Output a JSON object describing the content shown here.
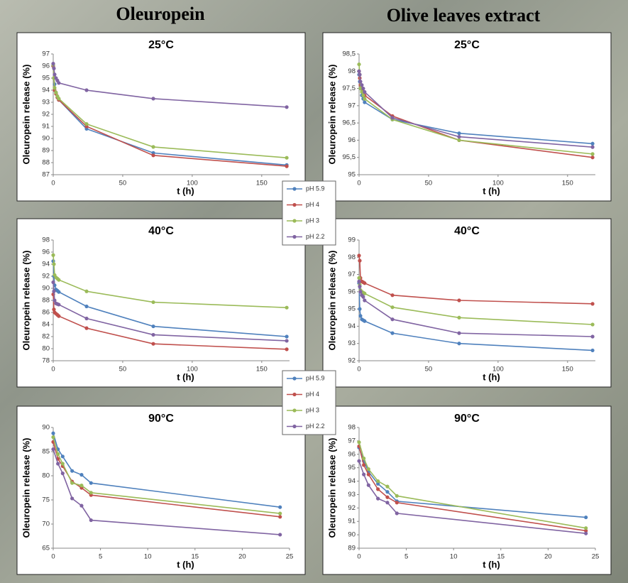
{
  "headings": [
    "Oleuropein",
    "Olive leaves extract"
  ],
  "chart_data": [
    {
      "type": "line",
      "title": "25°C",
      "x_label": "t (h)",
      "y_label": "Oleuropein release (%)",
      "x": [
        0,
        0.5,
        1,
        2,
        3,
        4,
        24,
        72,
        168
      ],
      "xlim": [
        0,
        170
      ],
      "xticks": [
        0,
        50,
        100,
        150
      ],
      "ylim": [
        87,
        97
      ],
      "yticks": [
        87,
        88,
        89,
        90,
        91,
        92,
        93,
        94,
        95,
        96,
        97
      ],
      "series": [
        {
          "name": "pH 5.9",
          "color": "#4f81bd",
          "values": [
            96,
            95,
            94.5,
            93.8,
            93.4,
            93.2,
            90.8,
            88.8,
            87.8
          ]
        },
        {
          "name": "pH 4",
          "color": "#c0504d",
          "values": [
            96,
            95,
            94,
            93.7,
            93.4,
            93.2,
            91,
            88.6,
            87.7
          ]
        },
        {
          "name": "pH 3",
          "color": "#9bbb59",
          "values": [
            96.1,
            95,
            94.2,
            93.8,
            93.5,
            93.3,
            91.2,
            89.3,
            88.4
          ]
        },
        {
          "name": "pH 2.2",
          "color": "#8064a2",
          "values": [
            96.2,
            95.8,
            95.3,
            95,
            94.8,
            94.6,
            94,
            93.3,
            92.6
          ]
        }
      ]
    },
    {
      "type": "line",
      "title": "25°C",
      "x_label": "t (h)",
      "y_label": "Oleuropein release (%)",
      "x": [
        0,
        0.5,
        1,
        2,
        3,
        4,
        24,
        72,
        168
      ],
      "xlim": [
        0,
        170
      ],
      "xticks": [
        0,
        50,
        100,
        150
      ],
      "ylim": [
        95,
        98.5
      ],
      "yticks": [
        95,
        {
          "value": 95.5,
          "label": "95,5"
        },
        96,
        {
          "value": 96.5,
          "label": "96,5"
        },
        97,
        {
          "value": 97.5,
          "label": "97,5"
        },
        98,
        {
          "value": 98.5,
          "label": "98,5"
        }
      ],
      "series": [
        {
          "name": "pH 5.9",
          "color": "#4f81bd",
          "values": [
            97.9,
            97.7,
            97.5,
            97.3,
            97.2,
            97.1,
            96.6,
            96.2,
            95.9
          ]
        },
        {
          "name": "pH 4",
          "color": "#c0504d",
          "values": [
            98,
            97.8,
            97.6,
            97.5,
            97.4,
            97.3,
            96.7,
            96,
            95.5
          ]
        },
        {
          "name": "pH 3",
          "color": "#9bbb59",
          "values": [
            98.2,
            97.9,
            97.5,
            97.4,
            97.3,
            97.2,
            96.6,
            96,
            95.6
          ]
        },
        {
          "name": "pH 2.2",
          "color": "#8064a2",
          "values": [
            98,
            97.9,
            97.7,
            97.6,
            97.5,
            97.4,
            96.65,
            96.1,
            95.8
          ]
        }
      ]
    },
    {
      "type": "line",
      "title": "40°C",
      "x_label": "t (h)",
      "y_label": "Oleuropein release (%)",
      "x": [
        0,
        0.5,
        1,
        2,
        3,
        4,
        24,
        72,
        168
      ],
      "xlim": [
        0,
        170
      ],
      "xticks": [
        0,
        50,
        100,
        150
      ],
      "ylim": [
        78,
        98
      ],
      "yticks": [
        78,
        80,
        82,
        84,
        86,
        88,
        90,
        92,
        94,
        96,
        98
      ],
      "series": [
        {
          "name": "pH 5.9",
          "color": "#4f81bd",
          "values": [
            94.5,
            92,
            90.5,
            89.8,
            89.6,
            89.4,
            87,
            83.7,
            82
          ]
        },
        {
          "name": "pH 4",
          "color": "#c0504d",
          "values": [
            89,
            86.5,
            86,
            85.8,
            85.6,
            85.4,
            83.4,
            80.8,
            79.9
          ]
        },
        {
          "name": "pH 3",
          "color": "#9bbb59",
          "values": [
            95.5,
            94,
            92.2,
            91.8,
            91.6,
            91.4,
            89.5,
            87.7,
            86.8
          ]
        },
        {
          "name": "pH 2.2",
          "color": "#8064a2",
          "values": [
            91,
            89.5,
            88,
            87.5,
            87.4,
            87.3,
            85,
            82.3,
            81.3
          ]
        }
      ]
    },
    {
      "type": "line",
      "title": "40°C",
      "x_label": "t (h)",
      "y_label": "Oleuropein release (%)",
      "x": [
        0,
        0.5,
        1,
        2,
        3,
        4,
        24,
        72,
        168
      ],
      "xlim": [
        0,
        170
      ],
      "xticks": [
        0,
        50,
        100,
        150
      ],
      "ylim": [
        92,
        99
      ],
      "yticks": [
        92,
        93,
        94,
        95,
        96,
        97,
        98,
        99
      ],
      "series": [
        {
          "name": "pH 5.9",
          "color": "#4f81bd",
          "values": [
            96.5,
            95,
            94.6,
            94.4,
            94.35,
            94.3,
            93.6,
            93,
            92.6
          ]
        },
        {
          "name": "pH 4",
          "color": "#c0504d",
          "values": [
            98.1,
            97.8,
            96.8,
            96.6,
            96.55,
            96.5,
            95.8,
            95.5,
            95.3
          ]
        },
        {
          "name": "pH 3",
          "color": "#9bbb59",
          "values": [
            96.8,
            96.4,
            96.1,
            96,
            95.95,
            95.9,
            95.1,
            94.5,
            94.1
          ]
        },
        {
          "name": "pH 2.2",
          "color": "#8064a2",
          "values": [
            96.6,
            96.3,
            96,
            95.8,
            95.7,
            95.5,
            94.4,
            93.6,
            93.4
          ]
        }
      ]
    },
    {
      "type": "line",
      "title": "90°C",
      "x_label": "t (h)",
      "y_label": "Oleuropein release (%)",
      "x": [
        0,
        0.5,
        1,
        2,
        3,
        4,
        24
      ],
      "xlim": [
        0,
        25
      ],
      "xticks": [
        0,
        5,
        10,
        15,
        20,
        25
      ],
      "ylim": [
        65,
        90
      ],
      "yticks": [
        65,
        70,
        75,
        80,
        85,
        90
      ],
      "series": [
        {
          "name": "pH 5.9",
          "color": "#4f81bd",
          "values": [
            88.8,
            85.5,
            84,
            81,
            80.2,
            78.5,
            73.5
          ]
        },
        {
          "name": "pH 4",
          "color": "#c0504d",
          "values": [
            87,
            83.5,
            82,
            78.8,
            77.5,
            76,
            71.5
          ]
        },
        {
          "name": "pH 3",
          "color": "#9bbb59",
          "values": [
            88,
            84.5,
            82.5,
            78.5,
            78,
            76.5,
            72.2
          ]
        },
        {
          "name": "pH 2.2",
          "color": "#8064a2",
          "values": [
            85.5,
            82.5,
            80.5,
            75.3,
            73.8,
            70.8,
            67.8
          ]
        }
      ]
    },
    {
      "type": "line",
      "title": "90°C",
      "x_label": "t (h)",
      "y_label": "Oleuropein release (%)",
      "x": [
        0,
        0.5,
        1,
        2,
        3,
        4,
        24
      ],
      "xlim": [
        0,
        25
      ],
      "xticks": [
        0,
        5,
        10,
        15,
        20,
        25
      ],
      "ylim": [
        89,
        98
      ],
      "yticks": [
        89,
        90,
        91,
        92,
        93,
        94,
        95,
        96,
        97,
        98
      ],
      "series": [
        {
          "name": "pH 5.9",
          "color": "#4f81bd",
          "values": [
            96.5,
            95.5,
            94.7,
            93.8,
            93.2,
            92.5,
            91.3
          ]
        },
        {
          "name": "pH 4",
          "color": "#c0504d",
          "values": [
            96.6,
            95.2,
            94.5,
            93.4,
            92.8,
            92.4,
            90.3
          ]
        },
        {
          "name": "pH 3",
          "color": "#9bbb59",
          "values": [
            96.9,
            95.7,
            94.9,
            94,
            93.6,
            92.9,
            90.5
          ]
        },
        {
          "name": "pH 2.2",
          "color": "#8064a2",
          "values": [
            95.5,
            94.5,
            93.7,
            92.7,
            92.4,
            91.6,
            90.1
          ]
        }
      ]
    }
  ]
}
